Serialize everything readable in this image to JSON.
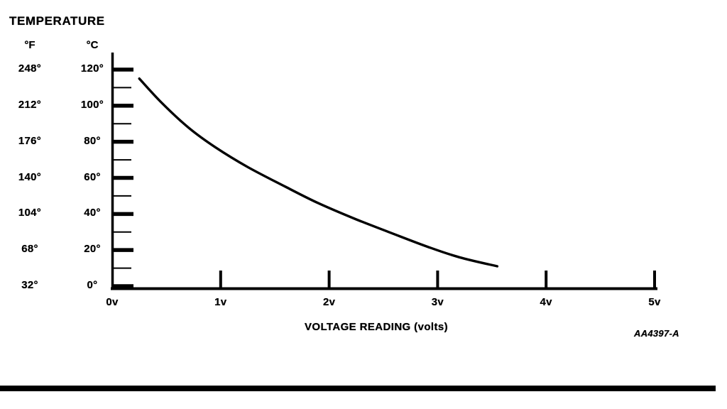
{
  "colors": {
    "ink": "#000000",
    "paper": "#ffffff"
  },
  "figure_code": "AA4397-A",
  "chart_data": {
    "type": "line",
    "title": "TEMPERATURE",
    "xlabel": "VOLTAGE READING (volts)",
    "y_axis_headers": {
      "fahrenheit": "°F",
      "celsius": "°C"
    },
    "x_ticks": [
      {
        "v": 0,
        "label": "0v"
      },
      {
        "v": 1,
        "label": "1v"
      },
      {
        "v": 2,
        "label": "2v"
      },
      {
        "v": 3,
        "label": "3v"
      },
      {
        "v": 4,
        "label": "4v"
      },
      {
        "v": 5,
        "label": "5v"
      }
    ],
    "y_ticks": [
      {
        "c": 120,
        "f_label": "248°",
        "c_label": "120°"
      },
      {
        "c": 100,
        "f_label": "212°",
        "c_label": "100°"
      },
      {
        "c": 80,
        "f_label": "176°",
        "c_label": "80°"
      },
      {
        "c": 60,
        "f_label": "140°",
        "c_label": "60°"
      },
      {
        "c": 40,
        "f_label": "104°",
        "c_label": "40°"
      },
      {
        "c": 20,
        "f_label": "68°",
        "c_label": "20°"
      },
      {
        "c": 0,
        "f_label": "32°",
        "c_label": "0°"
      }
    ],
    "y_minor_ticks_c": [
      110,
      90,
      70,
      50,
      30,
      10
    ],
    "xlim": [
      0,
      5
    ],
    "ylim_c": [
      0,
      120
    ],
    "ylim_f": [
      32,
      248
    ],
    "grid": false,
    "legend": false,
    "series": [
      {
        "name": "temperature-vs-voltage-reading",
        "points_v_c": [
          [
            0.25,
            115
          ],
          [
            0.45,
            102
          ],
          [
            0.7,
            88
          ],
          [
            0.95,
            77
          ],
          [
            1.25,
            66
          ],
          [
            1.6,
            55
          ],
          [
            1.9,
            46
          ],
          [
            2.25,
            37
          ],
          [
            2.55,
            30
          ],
          [
            2.9,
            22
          ],
          [
            3.2,
            16
          ],
          [
            3.55,
            11
          ]
        ]
      }
    ]
  }
}
